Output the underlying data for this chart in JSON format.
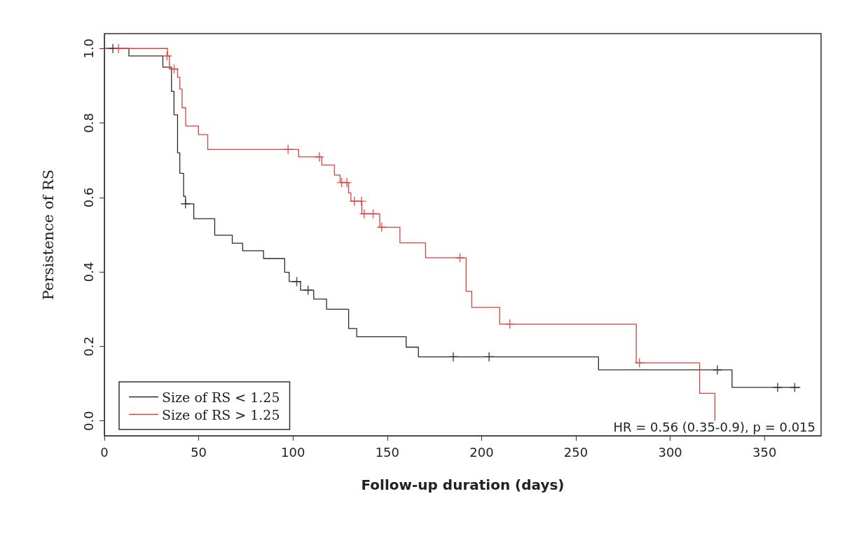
{
  "chart_data": {
    "type": "step",
    "xlabel": "Follow-up duration (days)",
    "ylabel": "Persistence of RS",
    "xlim": [
      0,
      380
    ],
    "xticks": [
      0,
      50,
      100,
      150,
      200,
      250,
      300,
      350
    ],
    "ylim": [
      -0.04,
      1.04
    ],
    "yticks": [
      {
        "value": 0,
        "label": "0.0"
      },
      {
        "value": 0.2,
        "label": "0.2"
      },
      {
        "value": 0.4,
        "label": "0.4"
      },
      {
        "value": 0.6,
        "label": "0.6"
      },
      {
        "value": 0.8,
        "label": "0.8"
      },
      {
        "value": 1,
        "label": "1.0"
      }
    ],
    "grid": false,
    "legend": "bottom left",
    "annotations": [
      "HR = 0.56 (0.35-0.9), p = 0.015"
    ],
    "series": [
      {
        "name": "Size of RS < 1.25",
        "color": "#2b2b2b",
        "x": [
          0,
          13,
          31,
          35.6,
          36.9,
          38.8,
          40,
          42,
          43,
          47.4,
          58.5,
          67.8,
          73.3,
          84.4,
          95.6,
          98,
          104,
          111,
          117.8,
          129.5,
          133.8,
          160,
          166.5,
          262,
          332.8,
          369
        ],
        "values": [
          1,
          0.98,
          0.95,
          0.885,
          0.822,
          0.72,
          0.665,
          0.603,
          0.583,
          0.543,
          0.499,
          0.477,
          0.457,
          0.436,
          0.399,
          0.374,
          0.351,
          0.327,
          0.3,
          0.248,
          0.226,
          0.198,
          0.172,
          0.137,
          0.09,
          0.09
        ]
      },
      {
        "name": "Size of RS > 1.25",
        "color": "#d9413f",
        "x": [
          0,
          33.5,
          34.5,
          38.8,
          40,
          41.2,
          43.1,
          49.9,
          54.8,
          103,
          115.3,
          122,
          125,
          129.5,
          130.7,
          136.5,
          146,
          156.7,
          170.3,
          191.8,
          194.8,
          209.6,
          282,
          315.6,
          323.7
        ],
        "values": [
          1,
          0.98,
          0.945,
          0.923,
          0.891,
          0.841,
          0.792,
          0.769,
          0.729,
          0.709,
          0.687,
          0.66,
          0.64,
          0.612,
          0.59,
          0.556,
          0.52,
          0.478,
          0.438,
          0.348,
          0.305,
          0.26,
          0.156,
          0.074,
          0
        ]
      },
      {
        "type": "scatter",
        "marker": "cross",
        "color": "#2b2b2b",
        "x": [
          4.5,
          43,
          102,
          108,
          185,
          204,
          325,
          357,
          366
        ],
        "values": [
          1,
          0.583,
          0.374,
          0.351,
          0.172,
          0.172,
          0.137,
          0.09,
          0.09
        ]
      },
      {
        "type": "scatter",
        "marker": "cross",
        "color": "#d9413f",
        "x": [
          7.5,
          33.2,
          37,
          97.4,
          114,
          125.8,
          128.6,
          132.6,
          136.3,
          137.8,
          142.5,
          147,
          188.5,
          215,
          283.7
        ],
        "values": [
          1,
          0.98,
          0.945,
          0.729,
          0.709,
          0.64,
          0.64,
          0.59,
          0.59,
          0.556,
          0.556,
          0.52,
          0.438,
          0.26,
          0.156
        ]
      }
    ]
  }
}
